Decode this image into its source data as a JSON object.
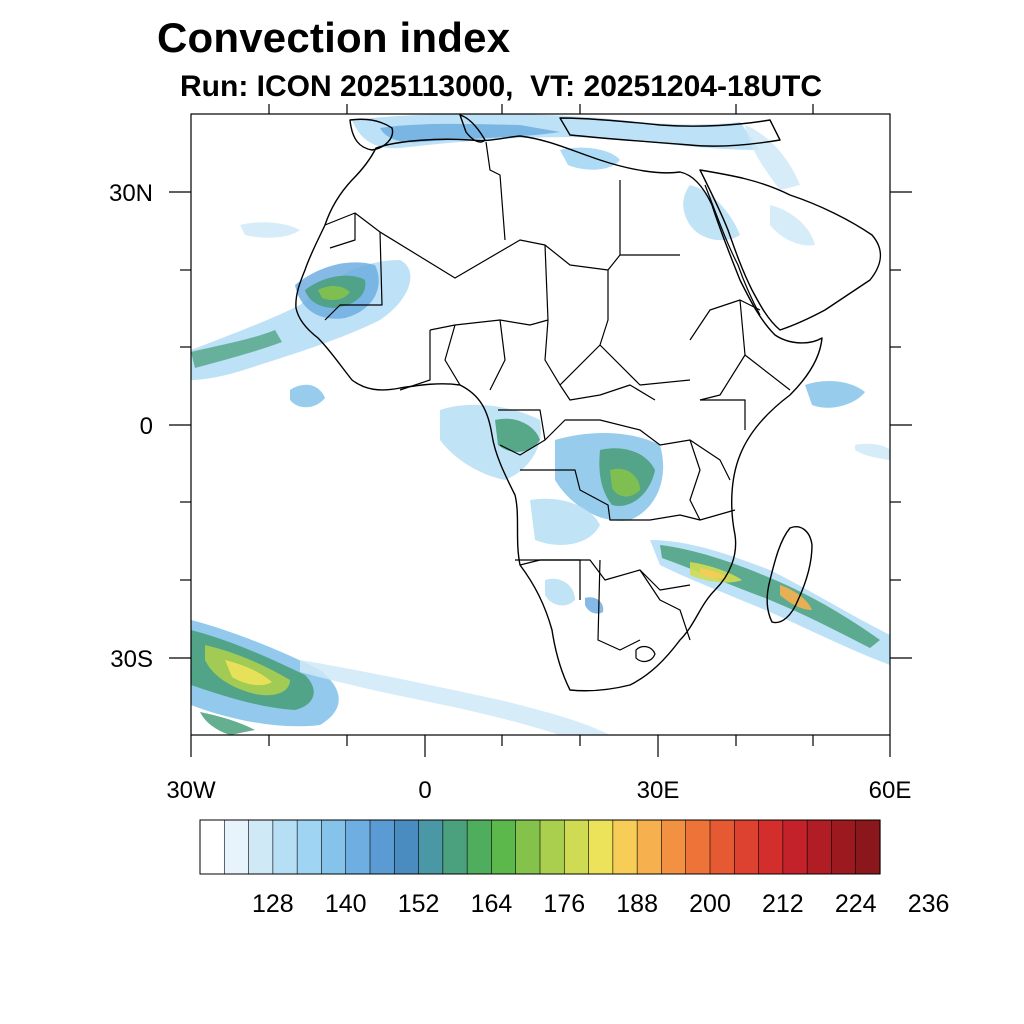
{
  "title": "Convection index",
  "subtitle": "Run: ICON 2025113000,  VT: 20251204-18UTC",
  "axes": {
    "x_ticks": [
      "30W",
      "0",
      "30E",
      "60E"
    ],
    "y_ticks": [
      "30N",
      "0",
      "30S"
    ]
  },
  "colorbar": {
    "colors": [
      "#ffffff",
      "#e8f4fb",
      "#cfe9f7",
      "#b6def5",
      "#9fd4f3",
      "#86c3ea",
      "#6eaee0",
      "#5b9bd3",
      "#4a8cbf",
      "#4a97a6",
      "#4ba07d",
      "#4fae5e",
      "#5cb84a",
      "#84c24c",
      "#aacf4f",
      "#cfdc53",
      "#ede35a",
      "#f7cc57",
      "#f6b04e",
      "#f39142",
      "#ee7338",
      "#e55a32",
      "#dd4230",
      "#d42e2c",
      "#c3222b",
      "#b11d25",
      "#9c1a1f",
      "#8a171b"
    ],
    "labels": [
      "128",
      "140",
      "152",
      "164",
      "176",
      "188",
      "200",
      "212",
      "224",
      "236"
    ]
  }
}
